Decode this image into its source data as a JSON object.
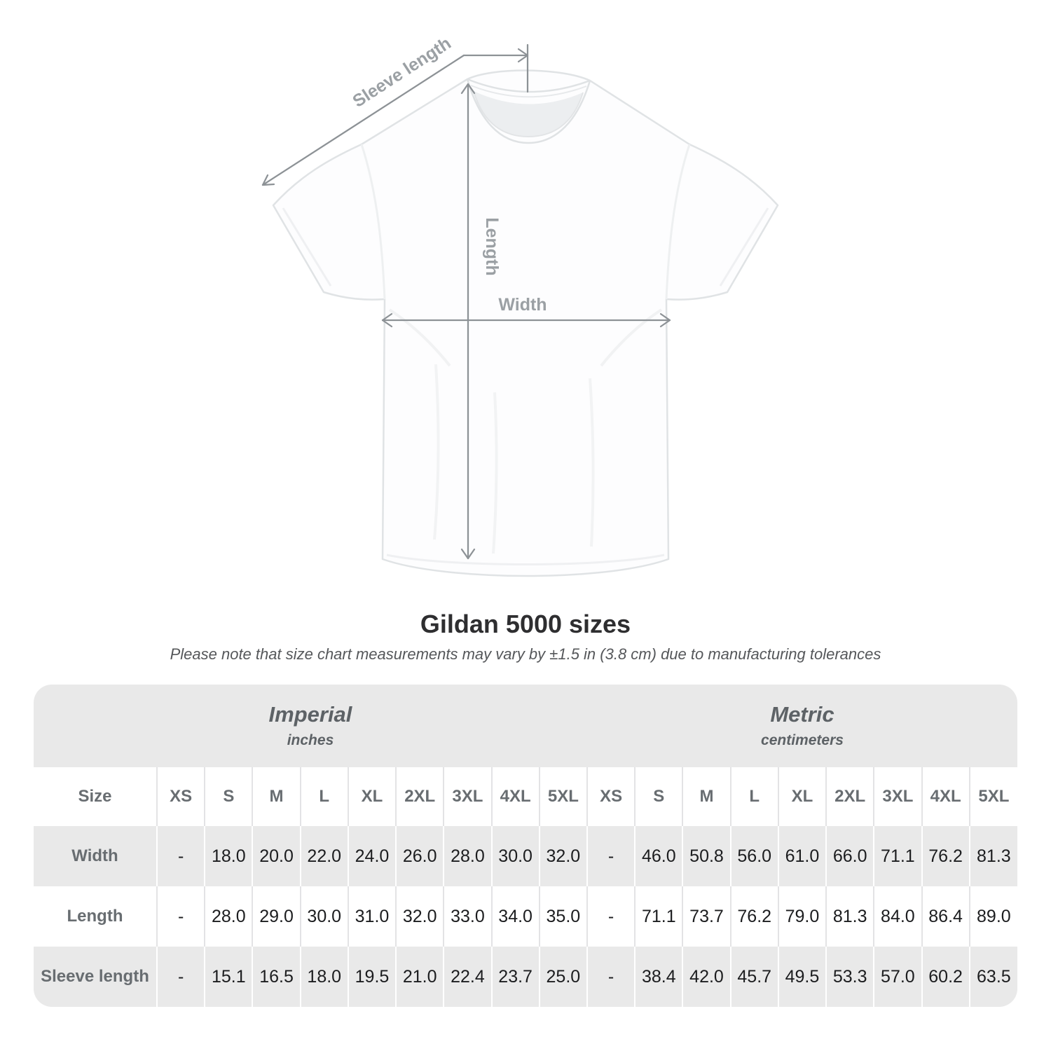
{
  "title": "Gildan 5000 sizes",
  "subtitle": "Please note that size chart measurements may vary by ±1.5 in (3.8 cm) due to manufacturing tolerances",
  "diagram": {
    "sleeve_label": "Sleeve length",
    "length_label": "Length",
    "width_label": "Width"
  },
  "table": {
    "size_header": "Size",
    "groups": [
      {
        "label": "Imperial",
        "sublabel": "inches"
      },
      {
        "label": "Metric",
        "sublabel": "centimeters"
      }
    ],
    "sizes": [
      "XS",
      "S",
      "M",
      "L",
      "XL",
      "2XL",
      "3XL",
      "4XL",
      "5XL"
    ],
    "rows": [
      {
        "label": "Width",
        "imperial": [
          "-",
          "18.0",
          "20.0",
          "22.0",
          "24.0",
          "26.0",
          "28.0",
          "30.0",
          "32.0"
        ],
        "metric": [
          "-",
          "46.0",
          "50.8",
          "56.0",
          "61.0",
          "66.0",
          "71.1",
          "76.2",
          "81.3"
        ]
      },
      {
        "label": "Length",
        "imperial": [
          "-",
          "28.0",
          "29.0",
          "30.0",
          "31.0",
          "32.0",
          "33.0",
          "34.0",
          "35.0"
        ],
        "metric": [
          "-",
          "71.1",
          "73.7",
          "76.2",
          "79.0",
          "81.3",
          "84.0",
          "86.4",
          "89.0"
        ]
      },
      {
        "label": "Sleeve length",
        "imperial": [
          "-",
          "15.1",
          "16.5",
          "18.0",
          "19.5",
          "21.0",
          "22.4",
          "23.7",
          "25.0"
        ],
        "metric": [
          "-",
          "38.4",
          "42.0",
          "45.7",
          "49.5",
          "53.3",
          "57.0",
          "60.2",
          "63.5"
        ]
      }
    ]
  },
  "chart_data": {
    "type": "table",
    "title": "Gildan 5000 sizes",
    "note": "Size chart measurements may vary by ±1.5 in (3.8 cm) due to manufacturing tolerances",
    "unit_groups": [
      {
        "name": "Imperial",
        "unit": "inches"
      },
      {
        "name": "Metric",
        "unit": "centimeters"
      }
    ],
    "sizes": [
      "XS",
      "S",
      "M",
      "L",
      "XL",
      "2XL",
      "3XL",
      "4XL",
      "5XL"
    ],
    "measurements": [
      {
        "name": "Width",
        "imperial_in": [
          null,
          18.0,
          20.0,
          22.0,
          24.0,
          26.0,
          28.0,
          30.0,
          32.0
        ],
        "metric_cm": [
          null,
          46.0,
          50.8,
          56.0,
          61.0,
          66.0,
          71.1,
          76.2,
          81.3
        ]
      },
      {
        "name": "Length",
        "imperial_in": [
          null,
          28.0,
          29.0,
          30.0,
          31.0,
          32.0,
          33.0,
          34.0,
          35.0
        ],
        "metric_cm": [
          null,
          71.1,
          73.7,
          76.2,
          79.0,
          81.3,
          84.0,
          86.4,
          89.0
        ]
      },
      {
        "name": "Sleeve length",
        "imperial_in": [
          null,
          15.1,
          16.5,
          18.0,
          19.5,
          21.0,
          22.4,
          23.7,
          25.0
        ],
        "metric_cm": [
          null,
          38.4,
          42.0,
          45.7,
          49.5,
          53.3,
          57.0,
          60.2,
          63.5
        ]
      }
    ]
  },
  "colors": {
    "band_gray": "#e9e9e9",
    "separator_on_white": "#e3e3e5",
    "separator_on_gray": "#ffffff",
    "header_text": "#686d71",
    "value_text": "#1c1d1f",
    "title_text": "#2e2e30",
    "note_text": "#55575a",
    "measure_line": "#8d9296",
    "measure_label": "#9ba0a4",
    "shirt_outline": "#e0e3e5"
  }
}
